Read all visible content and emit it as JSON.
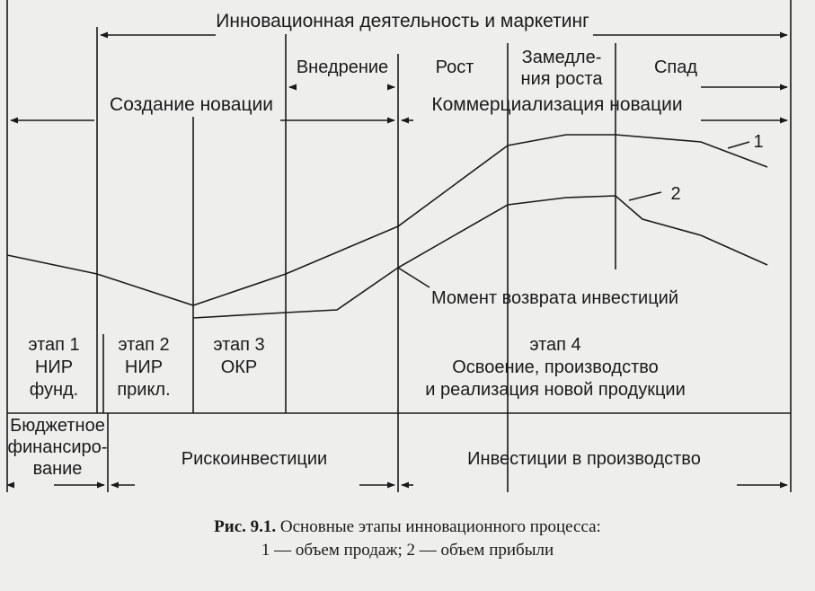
{
  "header": {
    "title": "Инновационная деятельность и маркетинг",
    "creation": "Создание новации",
    "commercialization": "Коммерциализация новации"
  },
  "phases": {
    "introduction": "Внедрение",
    "growth": "Рост",
    "slowdown_line1": "Замедле-",
    "slowdown_line2": "ния роста",
    "decline": "Спад"
  },
  "curves": {
    "sales_label": "1",
    "profit_label": "2",
    "payback": "Момент возврата инвестиций"
  },
  "stages": {
    "s1": {
      "line1": "этап 1",
      "line2": "НИР",
      "line3": "фунд."
    },
    "s2": {
      "line1": "этап 2",
      "line2": "НИР",
      "line3": "прикл."
    },
    "s3": {
      "line1": "этап 3",
      "line2": "ОКР"
    },
    "s4": {
      "line1": "этап 4",
      "line2": "Освоение, производство",
      "line3": "и реализация новой продукции"
    }
  },
  "financing": {
    "budget_line1": "Бюджетное",
    "budget_line2": "финансиро-",
    "budget_line3": "вание",
    "risk": "Рискоинвестиции",
    "production": "Инвестиции в производство"
  },
  "caption": {
    "label": "Рис. 9.1.",
    "text": "Основные этапы инновационного процесса:",
    "legend": "1 — объем продаж; 2 — объем прибыли"
  }
}
